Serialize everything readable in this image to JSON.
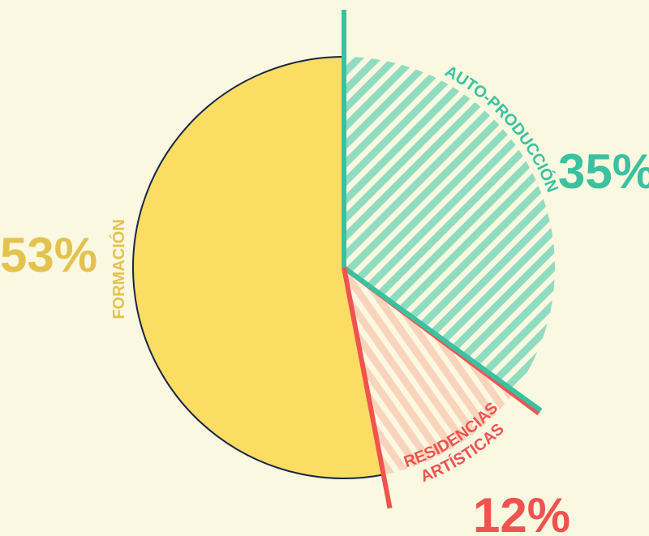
{
  "chart_data": {
    "type": "pie",
    "labels": [
      [
        "AUTO-PRODUCCIÓN"
      ],
      [
        "RESIDENCIAS",
        "ARTÍSTICAS"
      ],
      [
        "FORMACIÓN"
      ]
    ],
    "values": [
      35,
      12,
      53
    ],
    "value_labels": [
      "35%",
      "12%",
      "53%"
    ],
    "colors": [
      "#3cc1a0",
      "#ef5350",
      "#fbdd63"
    ]
  }
}
